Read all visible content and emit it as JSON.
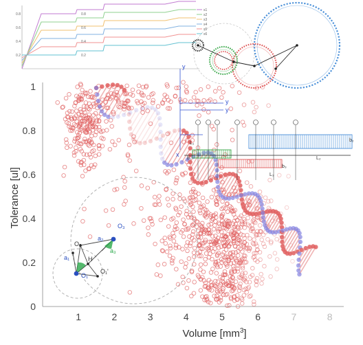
{
  "scatter": {
    "xlabel_text": "Volume [mm",
    "xlabel_sup": "3",
    "xlabel_close": "]",
    "ylabel": "Tolerance [ul]",
    "x_ticks": [
      "1",
      "2",
      "3",
      "4",
      "5",
      "6",
      "7",
      "8"
    ],
    "y_ticks": [
      "0",
      "0.2",
      "0.4",
      "0.6",
      "0.8",
      "1"
    ],
    "point_color": "#e06060"
  },
  "inset_chart": {
    "y_ticks_left": [
      "0.8",
      "0.6",
      "0.4",
      "0.2"
    ],
    "y_ticks_mid": [
      "0.8",
      "0.6",
      "0.4",
      "0.2"
    ],
    "legend": [
      "s1",
      "s2",
      "s3",
      "s4",
      "s5",
      "s6"
    ],
    "colors": [
      "#c07ad0",
      "#8fd08f",
      "#f0c070",
      "#80b0e0",
      "#f09090",
      "#60c0d0"
    ]
  },
  "gears": {
    "colors": {
      "green": "#3aa84a",
      "red": "#e05a5a",
      "blue": "#4a90d9",
      "dark": "#222222"
    }
  },
  "tolerance_diagram": {
    "labels": [
      "b₁",
      "b₂",
      "b₃",
      "L₁",
      "L₂",
      "L₃"
    ],
    "colors": {
      "green": "#3aa84a",
      "red": "#e05a5a",
      "blue": "#4a90d9"
    }
  },
  "vectors": {
    "labels": [
      "y",
      "y",
      "y",
      "x"
    ],
    "color": "#3050d0"
  },
  "geometry": {
    "labels": [
      "O₁",
      "O₂",
      "O₃",
      "a₁",
      "a₂",
      "a₃",
      "H",
      "O₁'"
    ],
    "colors": {
      "blue": "#2a4fc0",
      "green": "#2aa84a"
    }
  },
  "helix": {
    "colors": [
      "#e06060",
      "#8080e0"
    ]
  }
}
